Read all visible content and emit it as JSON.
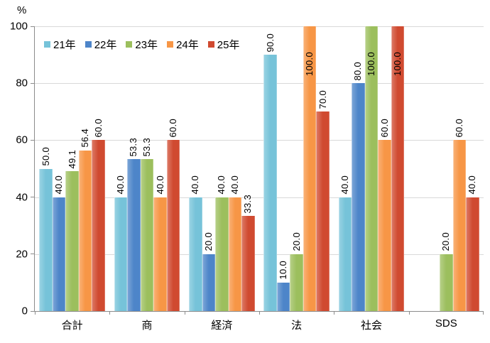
{
  "chart_data": {
    "type": "bar",
    "title": "",
    "unit_label": "%",
    "categories": [
      "合計",
      "商",
      "経済",
      "法",
      "社会",
      "SDS"
    ],
    "series": [
      {
        "name": "21年",
        "color": "#76C3D9",
        "values": [
          50.0,
          40.0,
          40.0,
          90.0,
          40.0,
          null
        ]
      },
      {
        "name": "22年",
        "color": "#4D85C9",
        "values": [
          40.0,
          53.3,
          20.0,
          10.0,
          80.0,
          null
        ]
      },
      {
        "name": "23年",
        "color": "#9CBF5D",
        "values": [
          49.1,
          53.3,
          40.0,
          20.0,
          100.0,
          20.0
        ]
      },
      {
        "name": "24年",
        "color": "#F79646",
        "values": [
          56.4,
          40.0,
          40.0,
          100.0,
          60.0,
          60.0
        ]
      },
      {
        "name": "25年",
        "color": "#D04A30",
        "values": [
          60.0,
          60.0,
          33.3,
          70.0,
          100.0,
          40.0
        ]
      }
    ],
    "ylim": [
      0,
      100
    ],
    "yticks": [
      0,
      20,
      40,
      60,
      80,
      100
    ],
    "grid": "horizontal",
    "legend_position": "top-left-inside",
    "value_label_format": "one-decimal",
    "value_label_rotation": -90,
    "colors": {
      "axis": "#8C8C8C",
      "gridline": "#D9D9D9",
      "text": "#000000",
      "background": "#FFFFFF"
    }
  }
}
